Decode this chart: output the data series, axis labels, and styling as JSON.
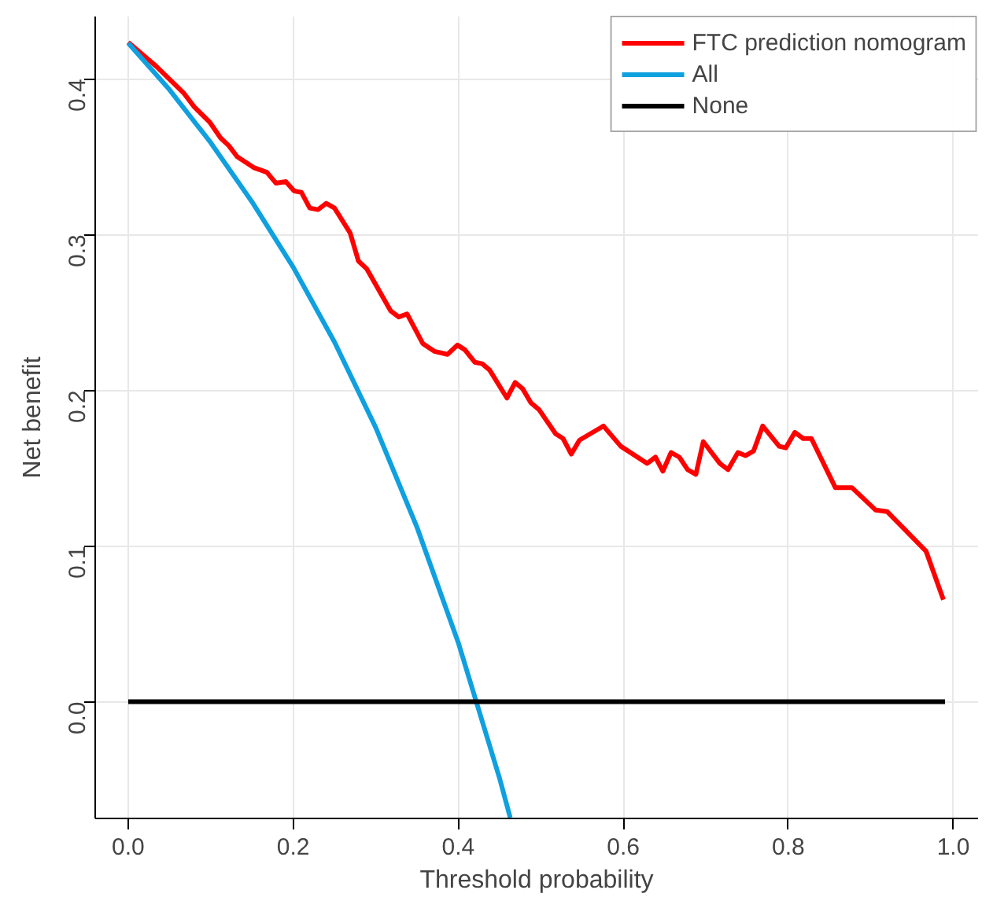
{
  "chart_data": {
    "type": "line",
    "xlabel": "Threshold probability",
    "ylabel": "Net benefit",
    "xlim": [
      -0.04,
      1.03
    ],
    "ylim": [
      -0.075,
      0.44
    ],
    "xticks": [
      {
        "value": 0,
        "label": "0.0"
      },
      0.2,
      0.4,
      0.6,
      0.8,
      {
        "value": 1,
        "label": "1.0"
      }
    ],
    "yticks": [
      {
        "value": 0,
        "label": "0.0"
      },
      0.1,
      0.2,
      0.3,
      0.4
    ],
    "grid": true,
    "legend": "top right",
    "line_style": "solid",
    "marker": "none",
    "series": [
      {
        "name": "FTC prediction nomogram",
        "color": "#ff0000",
        "x": [
          0,
          0.034,
          0.067,
          0.08,
          0.099,
          0.112,
          0.122,
          0.132,
          0.152,
          0.168,
          0.179,
          0.191,
          0.201,
          0.21,
          0.22,
          0.23,
          0.24,
          0.25,
          0.269,
          0.279,
          0.289,
          0.318,
          0.328,
          0.338,
          0.357,
          0.371,
          0.387,
          0.399,
          0.408,
          0.42,
          0.429,
          0.438,
          0.459,
          0.469,
          0.478,
          0.488,
          0.498,
          0.518,
          0.527,
          0.537,
          0.547,
          0.576,
          0.597,
          0.629,
          0.639,
          0.648,
          0.658,
          0.668,
          0.678,
          0.688,
          0.697,
          0.717,
          0.727,
          0.739,
          0.748,
          0.758,
          0.769,
          0.789,
          0.797,
          0.808,
          0.818,
          0.828,
          0.857,
          0.877,
          0.906,
          0.92,
          0.967,
          0.988
        ],
        "values": [
          0.4235,
          0.408,
          0.391,
          0.382,
          0.372,
          0.362,
          0.357,
          0.35,
          0.343,
          0.34,
          0.333,
          0.334,
          0.328,
          0.327,
          0.317,
          0.316,
          0.32,
          0.317,
          0.301,
          0.283,
          0.278,
          0.251,
          0.247,
          0.249,
          0.23,
          0.225,
          0.223,
          0.229,
          0.226,
          0.218,
          0.217,
          0.213,
          0.195,
          0.205,
          0.201,
          0.192,
          0.1875,
          0.172,
          0.169,
          0.159,
          0.168,
          0.177,
          0.164,
          0.153,
          0.157,
          0.148,
          0.16,
          0.157,
          0.149,
          0.146,
          0.167,
          0.153,
          0.149,
          0.16,
          0.158,
          0.161,
          0.177,
          0.164,
          0.163,
          0.173,
          0.169,
          0.169,
          0.1375,
          0.1375,
          0.123,
          0.122,
          0.0966,
          0.0655
        ]
      },
      {
        "name": "All",
        "color": "#0fa0e0",
        "x": [
          0,
          0.05,
          0.1,
          0.15,
          0.2,
          0.25,
          0.3,
          0.35,
          0.4,
          0.45,
          0.463
        ],
        "values": [
          0.423,
          0.393,
          0.359,
          0.321,
          0.279,
          0.231,
          0.176,
          0.112,
          0.038,
          -0.049,
          -0.0745
        ]
      },
      {
        "name": "None",
        "color": "#000000",
        "x": [
          0,
          0.99
        ],
        "values": [
          0,
          0
        ]
      }
    ]
  }
}
